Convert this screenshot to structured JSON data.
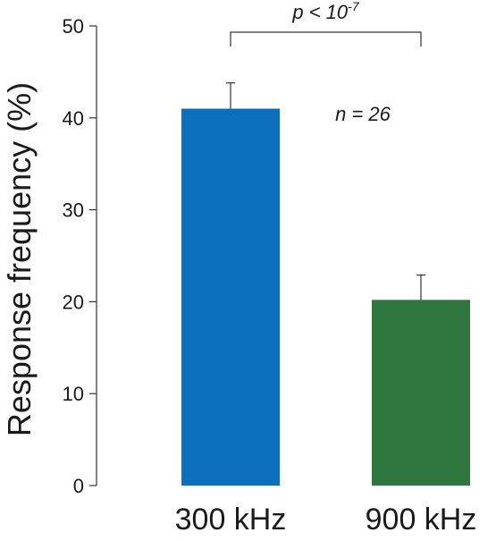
{
  "chart_data": {
    "type": "bar",
    "categories": [
      "300 kHz",
      "900 kHz"
    ],
    "values": [
      41,
      20.2
    ],
    "errors": [
      2.8,
      2.7
    ],
    "colors": [
      "#0b6fbe",
      "#2f773e"
    ],
    "ylabel": "Response frequency (%)",
    "xlabel": "",
    "title": "",
    "ylim": [
      0,
      50
    ],
    "yticks": [
      0,
      10,
      20,
      30,
      40,
      50
    ],
    "grid": false,
    "annotations": {
      "significance": {
        "base": "p < 10",
        "exponent": "-7"
      },
      "n_label": "n = 26"
    }
  }
}
